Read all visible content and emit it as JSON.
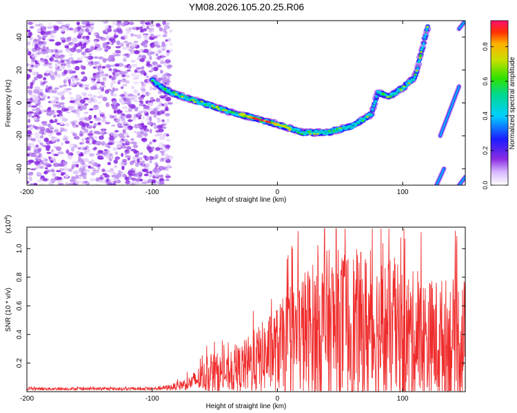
{
  "title": "YM08.2026.105.20.25.R06",
  "chart_data": [
    {
      "type": "heatmap",
      "xlabel": "Height of straight line (km)",
      "ylabel": "Frequency (Hz)",
      "xlim": [
        -200,
        150
      ],
      "ylim": [
        -50,
        50
      ],
      "x_ticks": [
        "-200",
        "-100",
        "0",
        "100"
      ],
      "y_ticks": [
        "-40",
        "-20",
        "0",
        "20",
        "40"
      ],
      "noise_region": [
        -200,
        -85
      ],
      "ridge": {
        "x": [
          -100,
          -90,
          -80,
          -60,
          -40,
          -20,
          0,
          20,
          40,
          60,
          75,
          80,
          90,
          100,
          110,
          120
        ],
        "y": [
          14,
          8,
          5,
          0,
          -5,
          -9,
          -13,
          -18,
          -18,
          -14,
          -7,
          6,
          4,
          9,
          16,
          46
        ]
      },
      "side_traces": [
        {
          "x": [
            127,
            133
          ],
          "y": [
            -50,
            -40
          ]
        },
        {
          "x": [
            130,
            145
          ],
          "y": [
            -20,
            10
          ]
        },
        {
          "x": [
            145,
            150
          ],
          "y": [
            -50,
            -45
          ]
        },
        {
          "x": [
            145,
            150
          ],
          "y": [
            45,
            50
          ]
        }
      ],
      "colorbar": {
        "label": "Normalized spectral amplitude",
        "range": [
          0.0,
          0.95
        ],
        "ticks": [
          "0.0",
          "0.2",
          "0.4",
          "0.6",
          "0.8"
        ]
      }
    },
    {
      "type": "line",
      "xlabel": "Height of straight line (km)",
      "ylabel": "SNR (10 * v/v)",
      "scale_label_base": "(x10",
      "scale_label_exp": "4",
      "scale_label_end": ")",
      "xlim": [
        -200,
        150
      ],
      "ylim": [
        0,
        1.15
      ],
      "x_ticks": [
        "-200",
        "-100",
        "0",
        "100"
      ],
      "y_ticks": [
        "0.2",
        "0.4",
        "0.6",
        "0.8",
        "1.0"
      ],
      "color": "#ef2c2c",
      "envelope": {
        "x": [
          -200,
          -100,
          -85,
          -70,
          -60,
          -50,
          -40,
          -20,
          0,
          20,
          40,
          60,
          80,
          100,
          120,
          150
        ],
        "mean": [
          0.02,
          0.02,
          0.03,
          0.06,
          0.1,
          0.13,
          0.12,
          0.2,
          0.3,
          0.4,
          0.45,
          0.45,
          0.42,
          0.38,
          0.35,
          0.35
        ],
        "amp": [
          0.01,
          0.01,
          0.02,
          0.05,
          0.1,
          0.15,
          0.12,
          0.22,
          0.3,
          0.45,
          0.55,
          0.55,
          0.55,
          0.5,
          0.45,
          0.45
        ]
      }
    }
  ]
}
